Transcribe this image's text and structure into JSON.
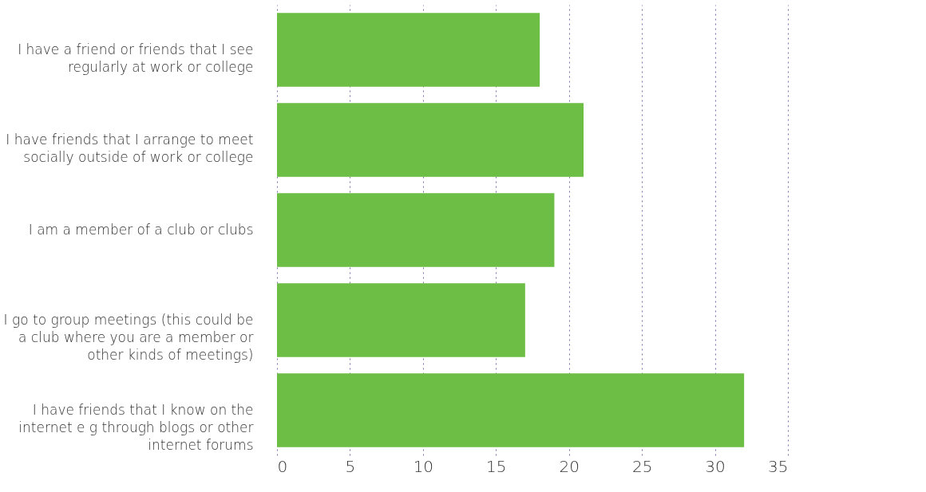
{
  "chart_data": {
    "type": "bar",
    "orientation": "horizontal",
    "categories": [
      "I have a friend or friends that I see regularly at work or college",
      "I have friends that I arrange to meet socially outside of work or college",
      "I am a member of a club or clubs",
      "I go to group meetings (this could be a club where you are a member or other kinds of meetings)",
      "I have friends that I know on the internet e g through blogs or other internet forums"
    ],
    "values": [
      18,
      21,
      19,
      17,
      32
    ],
    "color": "#6dbe45",
    "xlim": [
      0,
      35
    ],
    "xticks": [
      0,
      5,
      10,
      15,
      20,
      25,
      30,
      35
    ],
    "grid": "x"
  }
}
